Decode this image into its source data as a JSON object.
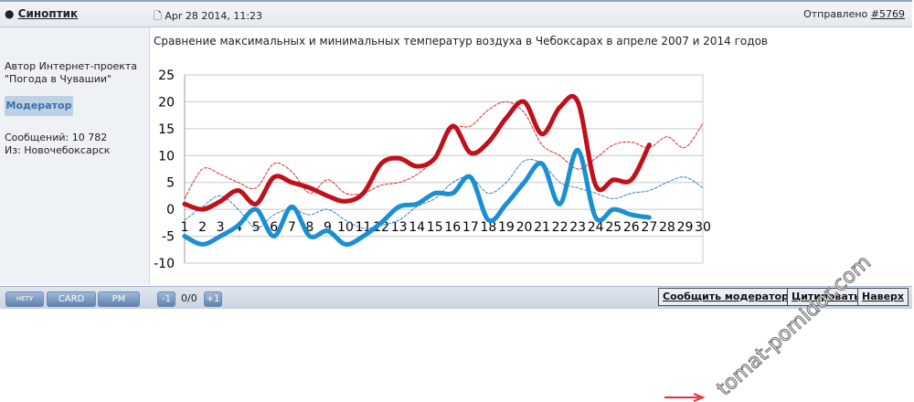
{
  "post": {
    "author": "Синоптик",
    "date": "Apr 28 2014, 11:23",
    "sent": "Отправлено",
    "post_no": "#5769",
    "text": "Сравнение максимальных и минимальных температур воздуха в Чебоксарах в апреле 2007 и 2014 годов",
    "profile": [
      "Автор Интернет-проекта",
      "\"Погода в Чувашии\""
    ],
    "role": "Модератор",
    "posts": "Сообщений: 10 782",
    "from": "Из: Новочебоксарск"
  },
  "toolbar": {
    "status": "НЕТУ",
    "card": "CARD",
    "pm": "PM",
    "minus": "-1",
    "rating": "0/0",
    "plus": "+1",
    "report": "Сообщить модератору",
    "quote": "Цитировать",
    "top": "Наверх"
  },
  "watermark": "tomat-pomidor.com",
  "chart_data": {
    "type": "line",
    "categories": [
      1,
      2,
      3,
      4,
      5,
      6,
      7,
      8,
      9,
      10,
      11,
      12,
      13,
      14,
      15,
      16,
      17,
      18,
      19,
      20,
      21,
      22,
      23,
      24,
      25,
      26,
      27,
      28,
      29,
      30
    ],
    "ylim": [
      -10,
      25
    ],
    "yticks": [
      -10,
      -5,
      0,
      5,
      10,
      15,
      20,
      25
    ],
    "grid": true,
    "series": [
      {
        "color": "#e0262b",
        "line_style": "dashed",
        "values": [
          2,
          7.5,
          6.5,
          5,
          4,
          8.5,
          7,
          3,
          5.5,
          3,
          3,
          4.5,
          5,
          6.5,
          9.5,
          15,
          15.5,
          18.5,
          20,
          18,
          12,
          10,
          7.5,
          9.5,
          12,
          12.5,
          11.5,
          13.5,
          11.5,
          16
        ]
      },
      {
        "color": "#3a7fc4",
        "line_style": "dashed",
        "values": [
          -2,
          0.5,
          2.5,
          0,
          -3.5,
          -1,
          0,
          -1,
          0,
          -2,
          -3.5,
          -3,
          -2,
          0.5,
          2,
          5,
          6,
          3,
          5,
          9,
          8.5,
          5,
          4,
          3,
          2,
          3,
          3.5,
          5,
          6,
          4
        ]
      },
      {
        "color": "#c0101a",
        "line_style": "solid",
        "values": [
          1,
          0,
          1.5,
          3.5,
          1,
          6,
          5,
          4,
          2.5,
          1.5,
          3,
          8.5,
          9.5,
          8,
          9.5,
          15.5,
          10.5,
          12.5,
          17,
          20,
          14,
          19,
          20,
          4.5,
          5.5,
          5.5,
          12,
          null,
          null,
          null
        ]
      },
      {
        "color": "#1a8fd1",
        "line_style": "solid",
        "values": [
          -5,
          -6.5,
          -5,
          -3,
          0,
          -5,
          0.5,
          -5,
          -4,
          -6.5,
          -5,
          -2.5,
          0.5,
          1,
          3,
          3,
          6,
          -2,
          1,
          5,
          8.5,
          1,
          11,
          -1.5,
          0,
          -1,
          -1.5,
          null,
          null,
          null
        ]
      }
    ]
  }
}
